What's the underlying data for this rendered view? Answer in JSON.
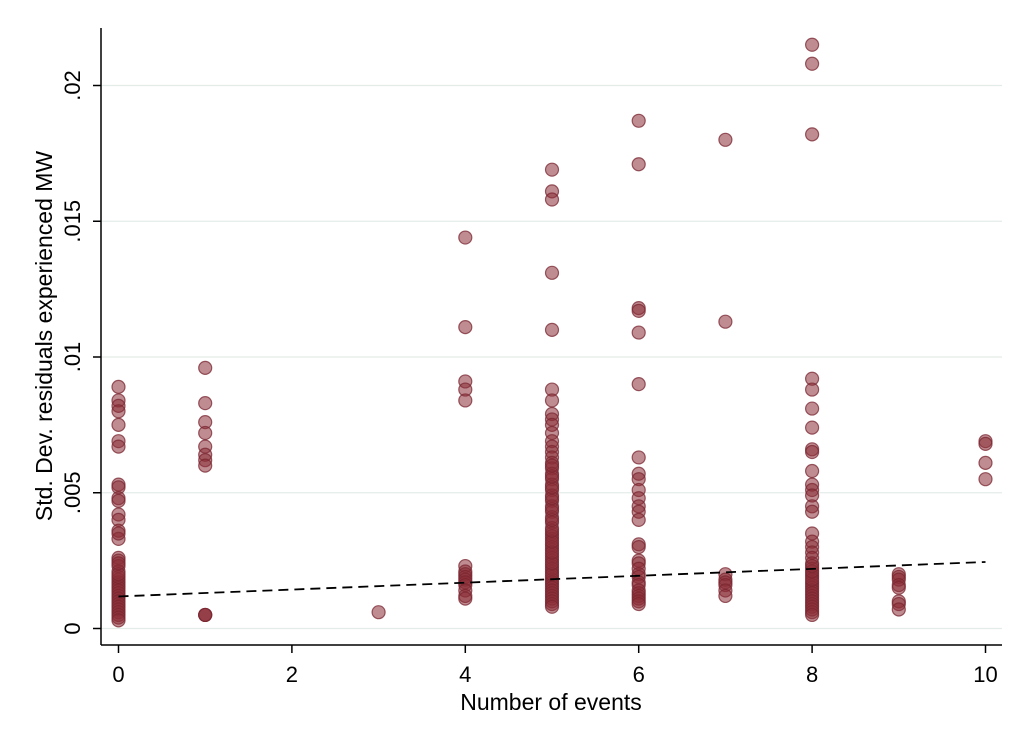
{
  "chart_data": {
    "type": "scatter",
    "title": "",
    "xlabel": "Number of events",
    "ylabel": "Std. Dev. residuals experienced MW",
    "xlim": [
      -0.3,
      10.3
    ],
    "ylim": [
      -0.0006,
      0.0222
    ],
    "x_ticks": [
      0,
      2,
      4,
      6,
      8,
      10
    ],
    "x_tick_labels": [
      "0",
      "2",
      "4",
      "6",
      "8",
      "10"
    ],
    "y_ticks": [
      0,
      0.005,
      0.01,
      0.015,
      0.02
    ],
    "y_tick_labels": [
      "0",
      ".005",
      ".01",
      ".015",
      ".02"
    ],
    "grid": "horizontal",
    "colors": {
      "marker_fill": "#8b2e36",
      "marker_edge": "#7a2530",
      "fit_line": "#000000",
      "grid": "#e4ece8"
    },
    "series": [
      {
        "type": "scatter",
        "x": [
          0,
          0,
          0,
          0,
          0,
          0,
          0,
          0,
          0,
          0,
          0,
          0,
          0,
          0,
          0,
          0,
          0,
          0,
          0,
          0,
          0,
          0,
          0,
          0,
          0,
          0,
          0,
          0,
          0,
          0,
          0,
          0,
          0,
          0,
          0,
          0,
          0,
          0,
          0,
          1,
          1,
          1,
          1,
          1,
          1,
          1,
          1,
          1,
          1,
          1,
          3,
          4,
          4,
          4,
          4,
          4,
          4,
          4,
          4,
          4,
          4,
          4,
          4,
          4,
          4,
          4,
          5,
          5,
          5,
          5,
          5,
          5,
          5,
          5,
          5,
          5,
          5,
          5,
          5,
          5,
          5,
          5,
          5,
          5,
          5,
          5,
          5,
          5,
          5,
          5,
          5,
          5,
          5,
          5,
          5,
          5,
          5,
          5,
          5,
          5,
          5,
          5,
          5,
          5,
          5,
          5,
          5,
          5,
          5,
          5,
          5,
          5,
          5,
          5,
          5,
          5,
          5,
          5,
          5,
          5,
          5,
          5,
          5,
          5,
          5,
          5,
          5,
          5,
          5,
          6,
          6,
          6,
          6,
          6,
          6,
          6,
          6,
          6,
          6,
          6,
          6,
          6,
          6,
          6,
          6,
          6,
          6,
          6,
          6,
          6,
          6,
          6,
          6,
          6,
          6,
          6,
          6,
          6,
          7,
          7,
          7,
          7,
          7,
          7,
          7,
          7,
          8,
          8,
          8,
          8,
          8,
          8,
          8,
          8,
          8,
          8,
          8,
          8,
          8,
          8,
          8,
          8,
          8,
          8,
          8,
          8,
          8,
          8,
          8,
          8,
          8,
          8,
          8,
          8,
          8,
          8,
          8,
          8,
          8,
          8,
          8,
          8,
          8,
          8,
          8,
          8,
          9,
          9,
          9,
          9,
          9,
          9,
          9,
          9,
          10,
          10,
          10,
          10
        ],
        "y": [
          0.0089,
          0.0084,
          0.0082,
          0.008,
          0.0075,
          0.0069,
          0.0067,
          0.0053,
          0.0052,
          0.0048,
          0.0047,
          0.0042,
          0.004,
          0.0036,
          0.0033,
          0.0026,
          0.0025,
          0.0023,
          0.0021,
          0.0018,
          0.0017,
          0.0016,
          0.0015,
          0.0014,
          0.0013,
          0.0012,
          0.0011,
          0.001,
          0.0009,
          0.0008,
          0.0007,
          0.0006,
          0.0005,
          0.0004,
          0.0019,
          0.002,
          0.0024,
          0.0003,
          0.0035,
          0.0096,
          0.0083,
          0.0076,
          0.0072,
          0.0067,
          0.0064,
          0.0062,
          0.006,
          0.0005,
          0.0005,
          0.0005,
          0.0006,
          0.0144,
          0.0111,
          0.0091,
          0.0088,
          0.0084,
          0.0023,
          0.0021,
          0.002,
          0.0019,
          0.0018,
          0.0017,
          0.0016,
          0.0014,
          0.0012,
          0.0011,
          0.0169,
          0.0161,
          0.0158,
          0.0131,
          0.011,
          0.0088,
          0.0084,
          0.0079,
          0.0077,
          0.0075,
          0.0072,
          0.0069,
          0.0067,
          0.0065,
          0.0063,
          0.0061,
          0.0059,
          0.0057,
          0.0055,
          0.0053,
          0.0051,
          0.0049,
          0.0047,
          0.0045,
          0.0043,
          0.0041,
          0.0039,
          0.0037,
          0.0035,
          0.0033,
          0.0031,
          0.0029,
          0.0027,
          0.0025,
          0.0023,
          0.0021,
          0.0019,
          0.0018,
          0.0017,
          0.0016,
          0.0015,
          0.0014,
          0.0013,
          0.0012,
          0.0011,
          0.001,
          0.0009,
          0.0008,
          0.0034,
          0.003,
          0.0026,
          0.0022,
          0.002,
          0.0024,
          0.0028,
          0.0032,
          0.0036,
          0.004,
          0.0044,
          0.0048,
          0.0052,
          0.0056,
          0.006,
          0.0187,
          0.0171,
          0.0118,
          0.0117,
          0.0109,
          0.009,
          0.0063,
          0.0057,
          0.0055,
          0.0051,
          0.0048,
          0.0045,
          0.0043,
          0.004,
          0.0031,
          0.003,
          0.0025,
          0.0024,
          0.0022,
          0.002,
          0.0019,
          0.0017,
          0.0016,
          0.0014,
          0.0013,
          0.0012,
          0.0011,
          0.001,
          0.0009,
          0.018,
          0.0113,
          0.002,
          0.0018,
          0.0017,
          0.0016,
          0.0014,
          0.0012,
          0.0215,
          0.0208,
          0.0182,
          0.0092,
          0.0088,
          0.0081,
          0.0074,
          0.0066,
          0.0065,
          0.0058,
          0.0053,
          0.0051,
          0.0049,
          0.0045,
          0.0043,
          0.0035,
          0.0032,
          0.003,
          0.0028,
          0.0026,
          0.0024,
          0.0022,
          0.002,
          0.0019,
          0.0017,
          0.0016,
          0.0015,
          0.0014,
          0.0013,
          0.0012,
          0.0011,
          0.001,
          0.0009,
          0.0008,
          0.0007,
          0.0006,
          0.0005,
          0.0018,
          0.0021,
          0.0023,
          0.002,
          0.0019,
          0.0018,
          0.0016,
          0.0015,
          0.001,
          0.0009,
          0.0007,
          0.0069,
          0.0068,
          0.0061,
          0.0055
        ]
      },
      {
        "type": "line",
        "style": "dashed",
        "x": [
          0,
          10
        ],
        "y": [
          0.00118,
          0.00245
        ]
      }
    ]
  }
}
